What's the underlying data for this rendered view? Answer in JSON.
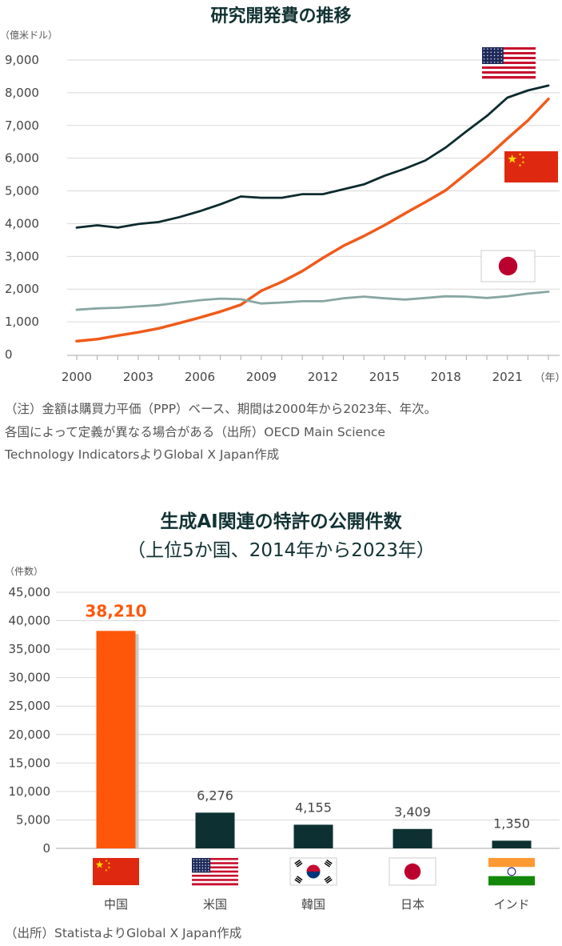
{
  "chart1": {
    "title": "研究開発費の推移",
    "unit_label": "（億米ドル）",
    "x_unit": "（年）",
    "note_lines": [
      "（注）金額は購買力平価（PPP）ベース、期間は2000年から2023年、年次。",
      "各国によって定義が異なる場合がある（出所）OECD Main Science",
      "Technology IndicatorsよりGlobal X Japan作成"
    ]
  },
  "chart2": {
    "title_line1": "生成AI関連の特許の公開件数",
    "title_line2": "（上位5か国、2014年から2023年）",
    "unit_label": "（件数）",
    "source": "（出所）StatistaよりGlobal X Japan作成"
  },
  "chart_data": [
    {
      "type": "line",
      "title": "研究開発費の推移",
      "ylabel": "（億米ドル）",
      "xlabel": "（年）",
      "ylim": [
        0,
        9000
      ],
      "xlim": [
        2000,
        2023
      ],
      "x_ticks": [
        "2000",
        "2003",
        "2006",
        "2009",
        "2012",
        "2015",
        "2018",
        "2021"
      ],
      "y_ticks": [
        "0",
        "1,000",
        "2,000",
        "3,000",
        "4,000",
        "5,000",
        "6,000",
        "7,000",
        "8,000",
        "9,000"
      ],
      "x": [
        2000,
        2001,
        2002,
        2003,
        2004,
        2005,
        2006,
        2007,
        2008,
        2009,
        2010,
        2011,
        2012,
        2013,
        2014,
        2015,
        2016,
        2017,
        2018,
        2019,
        2020,
        2021,
        2022,
        2023
      ],
      "series": [
        {
          "flag": "usa",
          "color": "#0d2b2f",
          "values": [
            3880,
            3950,
            3880,
            3990,
            4050,
            4200,
            4380,
            4590,
            4830,
            4790,
            4790,
            4900,
            4900,
            5050,
            5200,
            5460,
            5680,
            5930,
            6330,
            6820,
            7290,
            7850,
            8070,
            8220
          ]
        },
        {
          "flag": "china",
          "color": "#f05a1a",
          "values": [
            410,
            470,
            580,
            680,
            800,
            960,
            1130,
            1310,
            1520,
            1950,
            2220,
            2550,
            2950,
            3320,
            3620,
            3950,
            4310,
            4660,
            5020,
            5530,
            6030,
            6600,
            7150,
            7810
          ]
        },
        {
          "flag": "japan",
          "color": "#87a6a3",
          "values": [
            1370,
            1410,
            1430,
            1470,
            1510,
            1590,
            1660,
            1710,
            1690,
            1560,
            1590,
            1630,
            1630,
            1720,
            1770,
            1720,
            1680,
            1730,
            1780,
            1770,
            1730,
            1780,
            1860,
            1920
          ]
        }
      ],
      "grid": true,
      "legend": "flags"
    },
    {
      "type": "bar",
      "title": "生成AI関連の特許の公開件数（上位5か国、2014年から2023年）",
      "ylabel": "（件数）",
      "ylim": [
        0,
        45000
      ],
      "y_ticks": [
        "0",
        "5,000",
        "10,000",
        "15,000",
        "20,000",
        "25,000",
        "30,000",
        "35,000",
        "40,000",
        "45,000"
      ],
      "categories": [
        "中国",
        "米国",
        "韓国",
        "日本",
        "インド"
      ],
      "values": [
        38210,
        6276,
        4155,
        3409,
        1350
      ],
      "value_labels": [
        "38,210",
        "6,276",
        "4,155",
        "3,409",
        "1,350"
      ],
      "flags": [
        "china",
        "usa",
        "korea",
        "japan",
        "india"
      ],
      "colors": [
        "#ff5709",
        "#0d3133",
        "#0d3133",
        "#0d3133",
        "#0d3133"
      ],
      "grid": true
    }
  ]
}
